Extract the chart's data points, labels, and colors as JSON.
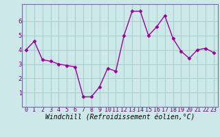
{
  "x": [
    0,
    1,
    2,
    3,
    4,
    5,
    6,
    7,
    8,
    9,
    10,
    11,
    12,
    13,
    14,
    15,
    16,
    17,
    18,
    19,
    20,
    21,
    22,
    23
  ],
  "y": [
    4.0,
    4.6,
    3.3,
    3.2,
    3.0,
    2.9,
    2.8,
    0.7,
    0.7,
    1.4,
    2.7,
    2.5,
    5.0,
    6.7,
    6.7,
    5.0,
    5.6,
    6.4,
    4.8,
    3.9,
    3.4,
    4.0,
    4.1,
    3.8
  ],
  "line_color": "#990099",
  "marker": "D",
  "markersize": 2.5,
  "linewidth": 1.0,
  "bg_color": "#cce8e8",
  "grid_color": "#aacece",
  "xlabel": "Windchill (Refroidissement éolien,°C)",
  "xlabel_fontsize": 7,
  "tick_fontsize": 6,
  "ylim": [
    0,
    7.2
  ],
  "yticks": [
    1,
    2,
    3,
    4,
    5,
    6
  ],
  "xlim": [
    -0.5,
    23.5
  ]
}
